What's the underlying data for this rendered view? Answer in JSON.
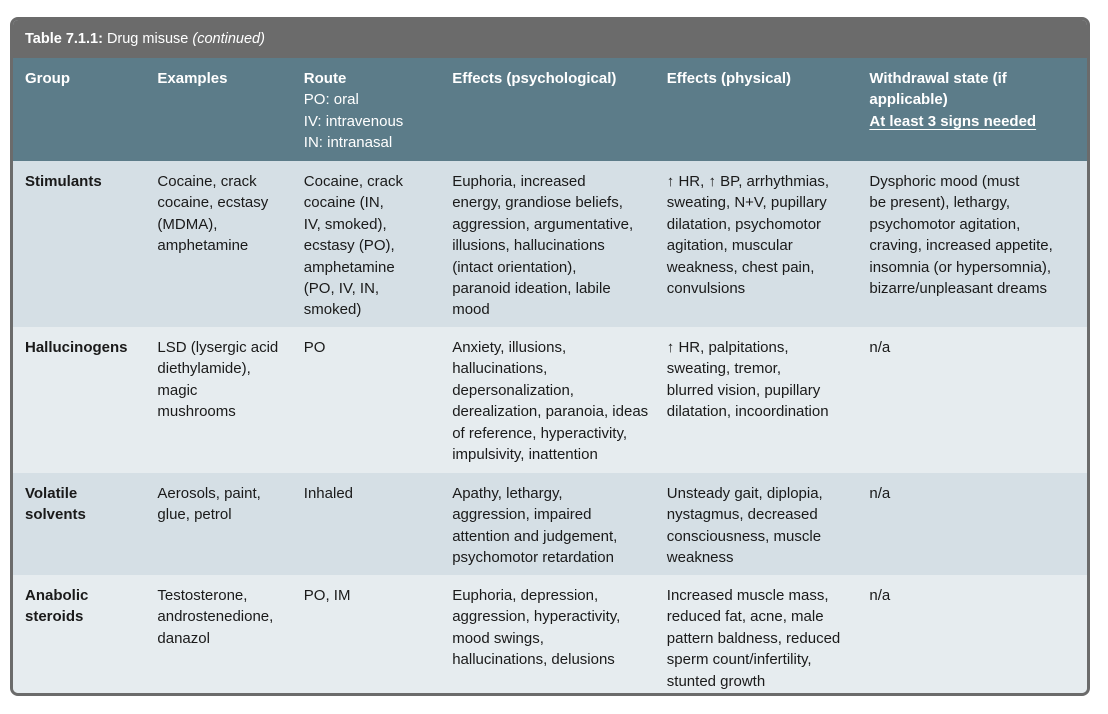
{
  "caption": {
    "number": "Table 7.1.1:",
    "title": "Drug misuse",
    "continued": "(continued)"
  },
  "headers": {
    "group": "Group",
    "examples": "Examples",
    "route": "Route",
    "route_lines": [
      "PO: oral",
      "IV: intravenous",
      "IN: intranasal"
    ],
    "effects_psych": "Effects (psychological)",
    "effects_phys": "Effects (physical)",
    "withdrawal_lines": [
      "Withdrawal state (if",
      "applicable)"
    ],
    "withdrawal_note": "At least 3 signs needed"
  },
  "rows": [
    {
      "group": [
        "Stimulants"
      ],
      "examples": [
        "Cocaine, crack",
        "cocaine, ecstasy",
        "(MDMA),",
        "amphetamine"
      ],
      "route": [
        "Cocaine, crack",
        "cocaine (IN,",
        "IV, smoked),",
        "ecstasy (PO),",
        "amphetamine",
        "(PO, IV, IN,",
        "smoked)"
      ],
      "psych": [
        "Euphoria, increased",
        "energy, grandiose beliefs,",
        "aggression, argumentative,",
        "illusions, hallucinations",
        "(intact orientation),",
        "paranoid ideation, labile",
        "mood"
      ],
      "phys": [
        "↑ HR, ↑ BP,  arrhythmias,",
        "sweating, N+V, pupillary",
        "dilatation, psychomotor",
        "agitation, muscular",
        "weakness, chest pain,",
        "convulsions"
      ],
      "withdrawal": [
        "Dysphoric mood (must",
        "be present), lethargy,",
        "psychomotor agitation,",
        "craving, increased appetite,",
        "insomnia (or hypersomnia),",
        "bizarre/unpleasant dreams"
      ]
    },
    {
      "group": [
        "Hallucinogens"
      ],
      "examples": [
        "LSD (lysergic acid",
        "diethylamide),",
        "magic",
        "mushrooms"
      ],
      "route": [
        "PO"
      ],
      "psych": [
        "Anxiety, illusions,",
        "hallucinations,",
        "depersonalization,",
        "derealization, paranoia, ideas",
        "of reference, hyperactivity,",
        "impulsivity, inattention"
      ],
      "phys": [
        "↑ HR, palpitations,",
        "sweating, tremor,",
        "blurred vision, pupillary",
        "dilatation, incoordination"
      ],
      "withdrawal": [
        "n/a"
      ]
    },
    {
      "group": [
        "Volatile",
        "solvents"
      ],
      "examples": [
        "Aerosols, paint,",
        "glue, petrol"
      ],
      "route": [
        "Inhaled"
      ],
      "psych": [
        "Apathy, lethargy,",
        "aggression, impaired",
        "attention and judgement,",
        "psychomotor retardation"
      ],
      "phys": [
        "Unsteady gait, diplopia,",
        "nystagmus, decreased",
        "consciousness, muscle",
        "weakness"
      ],
      "withdrawal": [
        "n/a"
      ]
    },
    {
      "group": [
        "Anabolic",
        "steroids"
      ],
      "examples": [
        "Testosterone,",
        "androstenedione,",
        "danazol"
      ],
      "route": [
        "PO, IM"
      ],
      "psych": [
        "Euphoria, depression,",
        "aggression, hyperactivity,",
        "mood swings,",
        "hallucinations, delusions"
      ],
      "phys": [
        "Increased muscle mass,",
        "reduced fat, acne, male",
        "pattern baldness, reduced",
        "sperm count/infertility,",
        "stunted growth"
      ],
      "withdrawal": [
        "n/a"
      ]
    }
  ]
}
